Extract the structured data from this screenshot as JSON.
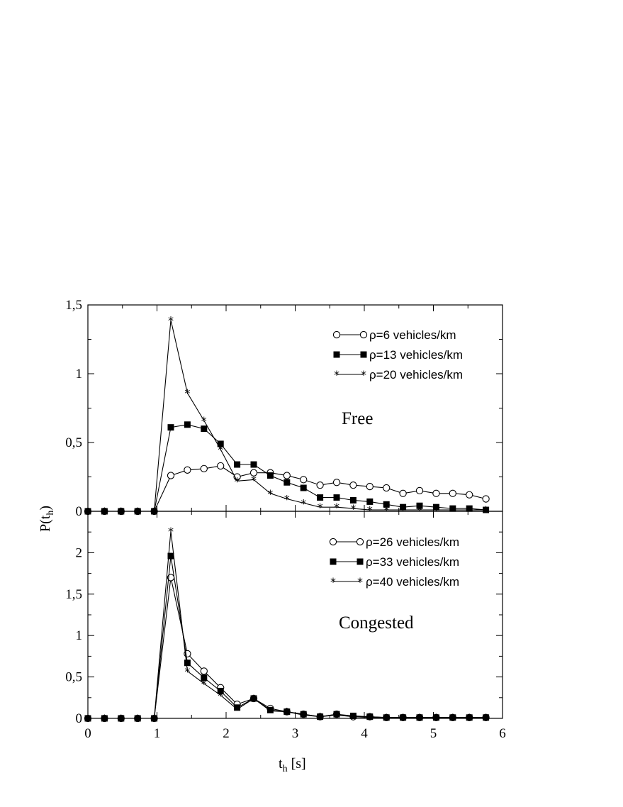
{
  "chart_data": [
    {
      "type": "line",
      "panel": "top",
      "annotation": "Free",
      "xlabel": "t_h [s]",
      "ylabel": "P(t_h)",
      "xlim": [
        0,
        6
      ],
      "ylim": [
        0,
        1.5
      ],
      "yticks": [
        "0",
        "0,5",
        "1",
        "1,5"
      ],
      "xticks": [
        "0",
        "1",
        "2",
        "3",
        "4",
        "5",
        "6"
      ],
      "legend_placement": "top-right",
      "x": [
        0,
        0.24,
        0.48,
        0.72,
        0.96,
        1.2,
        1.44,
        1.68,
        1.92,
        2.16,
        2.4,
        2.64,
        2.88,
        3.12,
        3.36,
        3.6,
        3.84,
        4.08,
        4.32,
        4.56,
        4.8,
        5.04,
        5.28,
        5.52,
        5.76
      ],
      "series": [
        {
          "name": "ρ=6 vehicles/km",
          "marker": "circle",
          "values": [
            0,
            0,
            0,
            0,
            0,
            0.26,
            0.3,
            0.31,
            0.33,
            0.25,
            0.28,
            0.28,
            0.26,
            0.23,
            0.19,
            0.21,
            0.19,
            0.18,
            0.17,
            0.13,
            0.15,
            0.13,
            0.13,
            0.12,
            0.09
          ]
        },
        {
          "name": "ρ=13 vehicles/km",
          "marker": "square",
          "values": [
            0,
            0,
            0,
            0,
            0,
            0.61,
            0.63,
            0.6,
            0.49,
            0.34,
            0.34,
            0.26,
            0.21,
            0.17,
            0.1,
            0.1,
            0.08,
            0.07,
            0.05,
            0.03,
            0.04,
            0.03,
            0.02,
            0.02,
            0.01
          ]
        },
        {
          "name": "ρ=20 vehicles/km",
          "marker": "star",
          "values": [
            0,
            0,
            0,
            0,
            0,
            1.39,
            0.86,
            0.66,
            0.45,
            0.22,
            0.23,
            0.13,
            0.09,
            0.06,
            0.03,
            0.03,
            0.02,
            0.01,
            0.01,
            0.01,
            0.01,
            0.01,
            0.01,
            0.01,
            0.01
          ]
        }
      ]
    },
    {
      "type": "line",
      "panel": "bottom",
      "annotation": "Congested",
      "xlabel": "t_h [s]",
      "ylabel": "P(t_h)",
      "xlim": [
        0,
        6
      ],
      "ylim": [
        0,
        2.5
      ],
      "yticks": [
        "0",
        "0,5",
        "1",
        "1,5",
        "2"
      ],
      "xticks": [
        "0",
        "1",
        "2",
        "3",
        "4",
        "5",
        "6"
      ],
      "legend_placement": "top-right",
      "x": [
        0,
        0.24,
        0.48,
        0.72,
        0.96,
        1.2,
        1.44,
        1.68,
        1.92,
        2.16,
        2.4,
        2.64,
        2.88,
        3.12,
        3.36,
        3.6,
        3.84,
        4.08,
        4.32,
        4.56,
        4.8,
        5.04,
        5.28,
        5.52,
        5.76
      ],
      "series": [
        {
          "name": "ρ=26 vehicles/km",
          "marker": "circle",
          "values": [
            0,
            0,
            0,
            0,
            0,
            1.7,
            0.78,
            0.57,
            0.37,
            0.17,
            0.24,
            0.12,
            0.08,
            0.05,
            0.02,
            0.05,
            0.02,
            0.02,
            0.01,
            0.01,
            0.01,
            0.01,
            0.01,
            0.01,
            0.01
          ]
        },
        {
          "name": "ρ=33 vehicles/km",
          "marker": "square",
          "values": [
            0,
            0,
            0,
            0,
            0,
            1.96,
            0.67,
            0.49,
            0.33,
            0.13,
            0.24,
            0.1,
            0.08,
            0.05,
            0.02,
            0.05,
            0.03,
            0.02,
            0.01,
            0.01,
            0.01,
            0.01,
            0.01,
            0.01,
            0.01
          ]
        },
        {
          "name": "ρ=40 vehicles/km",
          "marker": "star",
          "values": [
            0,
            0,
            0,
            0,
            0,
            2.26,
            0.57,
            0.42,
            0.28,
            0.11,
            0.24,
            0.09,
            0.08,
            0.04,
            0.02,
            0.04,
            0.02,
            0.01,
            0.01,
            0.01,
            0.01,
            0.01,
            0.01,
            0.01,
            0.01
          ]
        }
      ]
    }
  ],
  "labels": {
    "xlabel_main": "t",
    "xlabel_sub": "h",
    "xlabel_unit": " [s]",
    "ylabel_main": "P(t",
    "ylabel_sub": "h",
    "ylabel_close": ")"
  }
}
